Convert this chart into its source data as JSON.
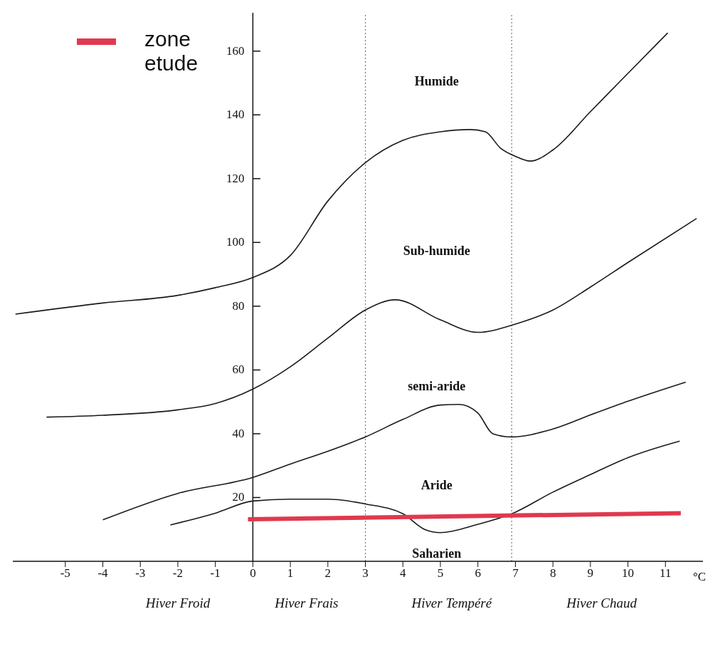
{
  "chart_data": {
    "type": "line",
    "xlabel": "°C",
    "legend": "top left",
    "marker": "none",
    "line_style": "solid",
    "xlim": [
      -6.4,
      12
    ],
    "ylim": [
      0,
      172
    ],
    "xticks": [
      -5,
      -4,
      -3,
      -2,
      -1,
      0,
      1,
      2,
      3,
      4,
      5,
      6,
      7,
      8,
      9,
      10,
      11
    ],
    "yticks": [
      20,
      40,
      60,
      80,
      100,
      120,
      140,
      160
    ],
    "series": [
      {
        "color": "#1a1a1a",
        "x": [
          -6.33,
          -4,
          -2,
          -1,
          0,
          1,
          2,
          3,
          4,
          5,
          5.8,
          6.2,
          6.6,
          7,
          7.4,
          8,
          9,
          10,
          11.06
        ],
        "values": [
          77.5,
          81,
          83.4,
          85.8,
          89,
          95.9,
          113,
          125,
          132,
          134.7,
          135.4,
          134.7,
          129.6,
          127,
          125.5,
          129,
          141,
          153,
          165.7
        ]
      },
      {
        "color": "#1a1a1a",
        "x": [
          -5.5,
          -4,
          -2,
          -1,
          0,
          1,
          2,
          3,
          3.8,
          5,
          6,
          7,
          8,
          9,
          10,
          11.83
        ],
        "values": [
          45.2,
          45.8,
          47.5,
          49.5,
          54,
          61,
          70,
          78.8,
          82,
          75.7,
          71.8,
          74.4,
          78.8,
          86,
          93.7,
          107.5
        ]
      },
      {
        "color": "#1a1a1a",
        "x": [
          -4,
          -2,
          0,
          1,
          2,
          3,
          4,
          5,
          5.5,
          6,
          6.4,
          6.9,
          8,
          9,
          10,
          11.54
        ],
        "values": [
          13,
          21.3,
          26.3,
          30.5,
          34.5,
          39,
          44.5,
          49,
          49.2,
          46.5,
          40,
          39,
          41.5,
          45.9,
          50.2,
          56.2
        ]
      },
      {
        "color": "#1a1a1a",
        "x": [
          -2.2,
          -1,
          0,
          1,
          2,
          3,
          4,
          4.6,
          5,
          6,
          6.9,
          8,
          9,
          10,
          11.38
        ],
        "values": [
          11.4,
          15.1,
          18.9,
          19.5,
          19.5,
          18,
          14.9,
          9.9,
          9,
          11.6,
          14.9,
          21.7,
          27.2,
          32.5,
          37.7
        ]
      },
      {
        "name": "zone etude",
        "color": "#e0394f",
        "x": [
          -0.13,
          11.41
        ],
        "values": [
          13.2,
          15.1
        ]
      }
    ],
    "ref_lines": [
      {
        "axis": "x",
        "value": 3,
        "color": "#777777",
        "line_style": "dotted"
      },
      {
        "axis": "x",
        "value": 6.9,
        "color": "#777777",
        "line_style": "dotted"
      }
    ],
    "annotations": [
      "Humide",
      "Sub-humide",
      "semi-aride",
      "Aride",
      "Saharien",
      "Hiver Froid",
      "Hiver Frais",
      "Hiver Tempéré",
      "Hiver Chaud"
    ]
  }
}
